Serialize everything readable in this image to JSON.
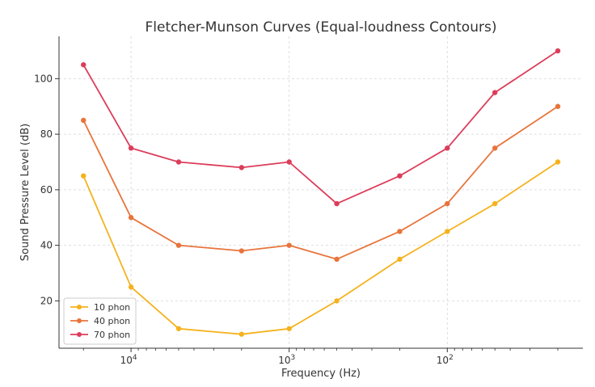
{
  "chart_data": {
    "type": "line",
    "title": "Fletcher-Munson Curves (Equal-loudness Contours)",
    "xlabel": "Frequency (Hz)",
    "ylabel": "Sound Pressure Level (dB)",
    "x_scale": "log",
    "x_axis_direction": "decreasing",
    "x": [
      20000,
      10000,
      5000,
      2000,
      1000,
      500,
      200,
      100,
      50,
      20
    ],
    "x_ticks": [
      {
        "value": 10000,
        "base": "10",
        "exp": "4"
      },
      {
        "value": 1000,
        "base": "10",
        "exp": "3"
      },
      {
        "value": 100,
        "base": "10",
        "exp": "2"
      }
    ],
    "y_ticks": [
      20,
      40,
      60,
      80,
      100
    ],
    "ylim": [
      3,
      115
    ],
    "grid": true,
    "legend_position": "bottom-left",
    "series": [
      {
        "name": "10 phon",
        "color": "#f5b21d",
        "values": [
          65,
          25,
          10,
          8,
          10,
          20,
          35,
          45,
          55,
          70
        ]
      },
      {
        "name": "40 phon",
        "color": "#e8743b",
        "values": [
          85,
          50,
          40,
          38,
          40,
          35,
          45,
          55,
          75,
          90
        ]
      },
      {
        "name": "70 phon",
        "color": "#dc3d5a",
        "values": [
          105,
          75,
          70,
          68,
          70,
          55,
          65,
          75,
          95,
          110
        ]
      }
    ]
  }
}
